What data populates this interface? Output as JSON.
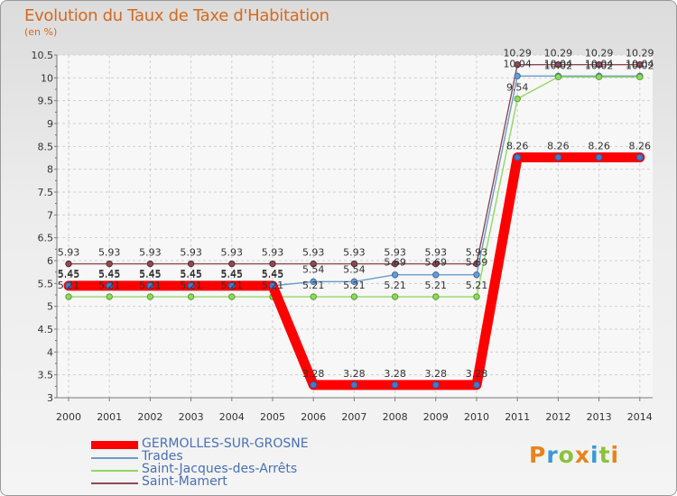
{
  "chart_data": {
    "type": "line",
    "title": "Evolution du Taux de Taxe d'Habitation",
    "subtitle": "(en %)",
    "xlabel": "",
    "ylabel": "",
    "ylim": [
      3,
      10.5
    ],
    "y_ticks": [
      "3",
      "3.5",
      "4",
      "4.5",
      "5",
      "5.5",
      "6",
      "6.5",
      "7",
      "7.5",
      "8",
      "8.5",
      "9",
      "9.5",
      "10",
      "10.5"
    ],
    "x": [
      "2000",
      "2001",
      "2002",
      "2003",
      "2004",
      "2005",
      "2006",
      "2007",
      "2008",
      "2009",
      "2010",
      "2011",
      "2012",
      "2013",
      "2014"
    ],
    "series": [
      {
        "name": "GERMOLLES-SUR-GROSNE",
        "color": "#ff0000",
        "values": [
          5.45,
          5.45,
          5.45,
          5.45,
          5.45,
          5.45,
          3.28,
          3.28,
          3.28,
          3.28,
          3.28,
          8.26,
          8.26,
          8.26,
          8.26
        ],
        "labels": [
          "5.45",
          "5.45",
          "5.45",
          "5.45",
          "5.45",
          "5.45",
          "3.28",
          "3.28",
          "3.28",
          "3.28",
          "3.28",
          "8.26",
          "8.26",
          "8.26",
          "8.26"
        ]
      },
      {
        "name": "Trades",
        "color": "#6b9ccc",
        "values": [
          5.45,
          5.45,
          5.45,
          5.45,
          5.45,
          5.45,
          5.54,
          5.54,
          5.69,
          5.69,
          5.69,
          10.04,
          10.04,
          10.04,
          10.04
        ],
        "labels": [
          "5.45",
          "5.45",
          "5.45",
          "5.45",
          "5.45",
          "5.45",
          "5.54",
          "5.54",
          "5.69",
          "5.69",
          "5.69",
          "10.04",
          "10.04",
          "10.04",
          "10.04"
        ]
      },
      {
        "name": "Saint-Jacques-des-Arrêts",
        "color": "#90d860",
        "values": [
          5.21,
          5.21,
          5.21,
          5.21,
          5.21,
          5.21,
          5.21,
          5.21,
          5.21,
          5.21,
          5.21,
          9.54,
          10.02,
          10.02,
          10.02
        ],
        "labels": [
          "5.21",
          "5.21",
          "5.21",
          "5.21",
          "5.21",
          "5.21",
          "5.21",
          "5.21",
          "5.21",
          "5.21",
          "5.21",
          "9.54",
          "10.02",
          "10.02",
          "10.02"
        ]
      },
      {
        "name": "Saint-Mamert",
        "color": "#8c4a58",
        "values": [
          5.93,
          5.93,
          5.93,
          5.93,
          5.93,
          5.93,
          5.93,
          5.93,
          5.93,
          5.93,
          5.93,
          10.29,
          10.29,
          10.29,
          10.29
        ],
        "labels": [
          "5.93",
          "5.93",
          "5.93",
          "5.93",
          "5.93",
          "5.93",
          "5.93",
          "5.93",
          "5.93",
          "5.93",
          "5.93",
          "10.29",
          "10.29",
          "10.29",
          "10.29"
        ]
      }
    ],
    "legend_position": "bottom-left"
  },
  "logo": {
    "text": "Proxiti",
    "colors": [
      "#e8841c",
      "#3a9ad8",
      "#8ac23a",
      "#e8841c",
      "#3a9ad8",
      "#8ac23a",
      "#e8841c"
    ]
  }
}
